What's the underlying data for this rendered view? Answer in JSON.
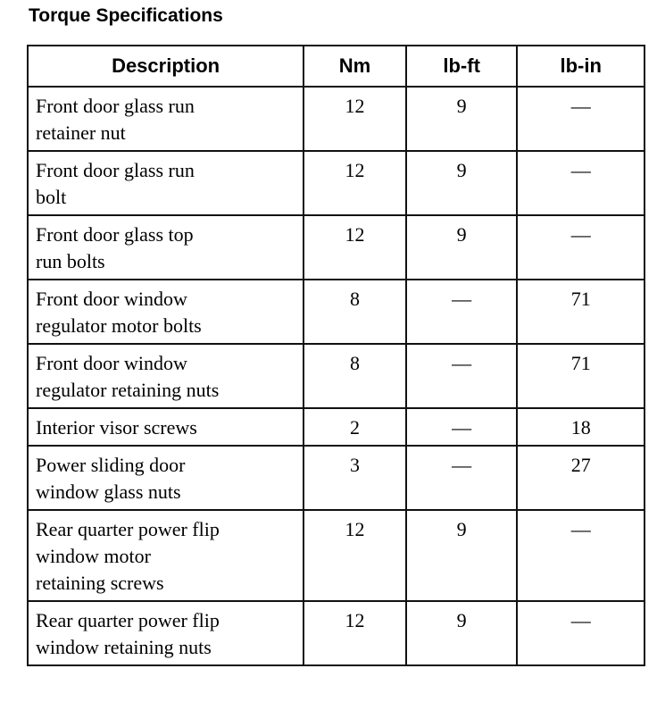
{
  "title": "Torque Specifications",
  "headers": [
    "Description",
    "Nm",
    "lb-ft",
    "lb-in"
  ],
  "rows": [
    [
      "Front door glass run retainer nut",
      "12",
      "9",
      "—"
    ],
    [
      "Front door glass run bolt",
      "12",
      "9",
      "—"
    ],
    [
      "Front door glass top run bolts",
      "12",
      "9",
      "—"
    ],
    [
      "Front door window regulator motor bolts",
      "8",
      "—",
      "71"
    ],
    [
      "Front door window regulator retaining nuts",
      "8",
      "—",
      "71"
    ],
    [
      "Interior visor screws",
      "2",
      "—",
      "18"
    ],
    [
      "Power sliding door window glass nuts",
      "3",
      "—",
      "27"
    ],
    [
      "Rear quarter power flip window motor retaining screws",
      "12",
      "9",
      "—"
    ],
    [
      "Rear quarter power flip window retaining nuts",
      "12",
      "9",
      "—"
    ]
  ]
}
